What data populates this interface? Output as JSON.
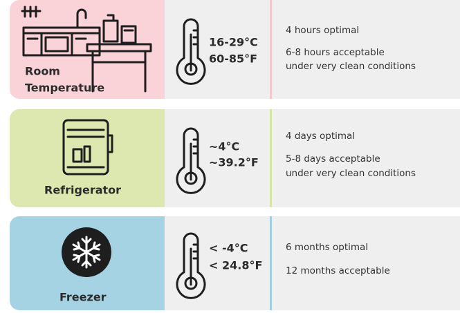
{
  "rows": [
    {
      "label": [
        "Room",
        "Temperature"
      ],
      "temps": [
        "16-29°C",
        "60-85°F"
      ],
      "notes": [
        [
          "4 hours optimal"
        ],
        [
          "6-8 hours acceptable",
          "under very clean conditions"
        ]
      ]
    },
    {
      "label": [
        "Refrigerator"
      ],
      "temps": [
        "~4°C",
        "~39.2°F"
      ],
      "notes": [
        [
          "4 days optimal"
        ],
        [
          "5-8 days acceptable",
          "under very clean conditions"
        ]
      ]
    },
    {
      "label": [
        "Freezer"
      ],
      "temps": [
        "< -4°C",
        "< 24.8°F"
      ],
      "notes": [
        [
          "6 months optimal"
        ],
        [
          "12 months acceptable"
        ]
      ]
    }
  ]
}
